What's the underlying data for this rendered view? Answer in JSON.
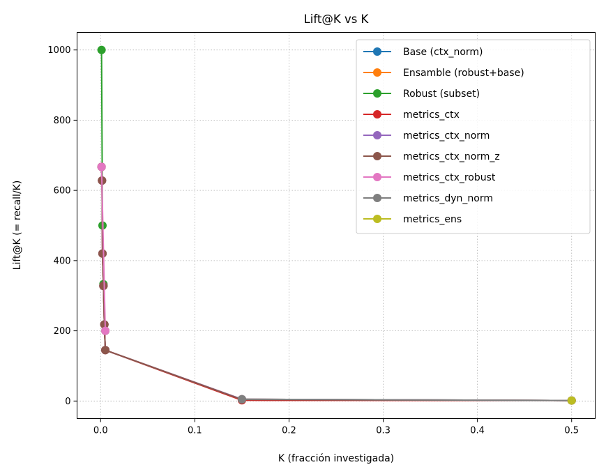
{
  "chart_data": {
    "type": "line",
    "title": "Lift@K vs K",
    "xlabel": "K (fracción investigada)",
    "ylabel": "Lift@K (= recall/K)",
    "xlim": [
      -0.025,
      0.525
    ],
    "ylim": [
      -50,
      1050
    ],
    "xticks": [
      0.0,
      0.1,
      0.2,
      0.3,
      0.4,
      0.5
    ],
    "xtick_labels": [
      "0.0",
      "0.1",
      "0.2",
      "0.3",
      "0.4",
      "0.5"
    ],
    "yticks": [
      0,
      200,
      400,
      600,
      800,
      1000
    ],
    "ytick_labels": [
      "0",
      "200",
      "400",
      "600",
      "800",
      "1000"
    ],
    "grid": true,
    "legend_position": "top-right",
    "series": [
      {
        "name": "Base (ctx_norm)",
        "color": "#1f77b4",
        "x": [
          0.001,
          0.0015,
          0.002,
          0.003,
          0.004,
          0.005,
          0.15,
          0.5
        ],
        "y": [
          667,
          628,
          420,
          328,
          218,
          145,
          5,
          1.5
        ]
      },
      {
        "name": "Ensamble (robust+base)",
        "color": "#ff7f0e",
        "x": [
          0.001,
          0.0015,
          0.002,
          0.003,
          0.004,
          0.005,
          0.15,
          0.5
        ],
        "y": [
          667,
          628,
          420,
          328,
          218,
          145,
          5,
          1.5
        ]
      },
      {
        "name": "Robust (subset)",
        "color": "#2ca02c",
        "x": [
          0.001,
          0.002,
          0.003,
          0.005
        ],
        "y": [
          1000,
          500,
          333,
          200
        ]
      },
      {
        "name": "metrics_ctx",
        "color": "#d62728",
        "x": [
          0.001,
          0.0015,
          0.002,
          0.003,
          0.004,
          0.005,
          0.15,
          0.5
        ],
        "y": [
          667,
          628,
          420,
          328,
          218,
          145,
          2,
          1.5
        ]
      },
      {
        "name": "metrics_ctx_norm",
        "color": "#9467bd",
        "x": [
          0.001,
          0.0015,
          0.002,
          0.003,
          0.004,
          0.005,
          0.15,
          0.5
        ],
        "y": [
          667,
          628,
          420,
          328,
          218,
          145,
          5,
          1.5
        ]
      },
      {
        "name": "metrics_ctx_norm_z",
        "color": "#8c564b",
        "x": [
          0.001,
          0.0015,
          0.002,
          0.003,
          0.004,
          0.005,
          0.15,
          0.5
        ],
        "y": [
          667,
          628,
          420,
          328,
          218,
          145,
          4,
          1.5
        ]
      },
      {
        "name": "metrics_ctx_robust",
        "color": "#e377c2",
        "x": [
          0.001,
          0.005
        ],
        "y": [
          667,
          200
        ]
      },
      {
        "name": "metrics_dyn_norm",
        "color": "#7f7f7f",
        "x": [
          0.15,
          0.5
        ],
        "y": [
          5,
          1.5
        ]
      },
      {
        "name": "metrics_ens",
        "color": "#bcbd22",
        "x": [
          0.5
        ],
        "y": [
          1.5
        ]
      }
    ]
  }
}
